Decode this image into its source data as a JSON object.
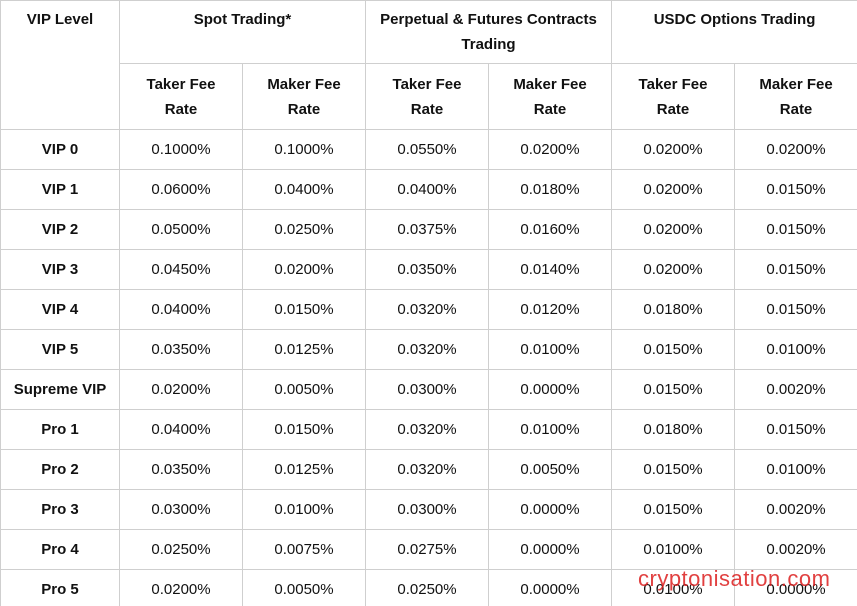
{
  "header": {
    "vip_level": "VIP Level",
    "groups": [
      "Spot Trading*",
      "Perpetual & Futures Contracts Trading",
      "USDC Options Trading"
    ],
    "subheaders": [
      "Taker Fee Rate",
      "Maker Fee Rate",
      "Taker Fee Rate",
      "Maker Fee Rate",
      "Taker Fee Rate",
      "Maker Fee Rate"
    ]
  },
  "table": {
    "rows": [
      [
        "VIP 0",
        "0.1000%",
        "0.1000%",
        "0.0550%",
        "0.0200%",
        "0.0200%",
        "0.0200%"
      ],
      [
        "VIP 1",
        "0.0600%",
        "0.0400%",
        "0.0400%",
        "0.0180%",
        "0.0200%",
        "0.0150%"
      ],
      [
        "VIP 2",
        "0.0500%",
        "0.0250%",
        "0.0375%",
        "0.0160%",
        "0.0200%",
        "0.0150%"
      ],
      [
        "VIP 3",
        "0.0450%",
        "0.0200%",
        "0.0350%",
        "0.0140%",
        "0.0200%",
        "0.0150%"
      ],
      [
        "VIP 4",
        "0.0400%",
        "0.0150%",
        "0.0320%",
        "0.0120%",
        "0.0180%",
        "0.0150%"
      ],
      [
        "VIP 5",
        "0.0350%",
        "0.0125%",
        "0.0320%",
        "0.0100%",
        "0.0150%",
        "0.0100%"
      ],
      [
        "Supreme VIP",
        "0.0200%",
        "0.0050%",
        "0.0300%",
        "0.0000%",
        "0.0150%",
        "0.0020%"
      ],
      [
        "Pro 1",
        "0.0400%",
        "0.0150%",
        "0.0320%",
        "0.0100%",
        "0.0180%",
        "0.0150%"
      ],
      [
        "Pro 2",
        "0.0350%",
        "0.0125%",
        "0.0320%",
        "0.0050%",
        "0.0150%",
        "0.0100%"
      ],
      [
        "Pro 3",
        "0.0300%",
        "0.0100%",
        "0.0300%",
        "0.0000%",
        "0.0150%",
        "0.0020%"
      ],
      [
        "Pro 4",
        "0.0250%",
        "0.0075%",
        "0.0275%",
        "0.0000%",
        "0.0100%",
        "0.0020%"
      ],
      [
        "Pro 5",
        "0.0200%",
        "0.0050%",
        "0.0250%",
        "0.0000%",
        "0.0100%",
        "0.0000%"
      ]
    ]
  },
  "watermark": "cryptonisation.com"
}
